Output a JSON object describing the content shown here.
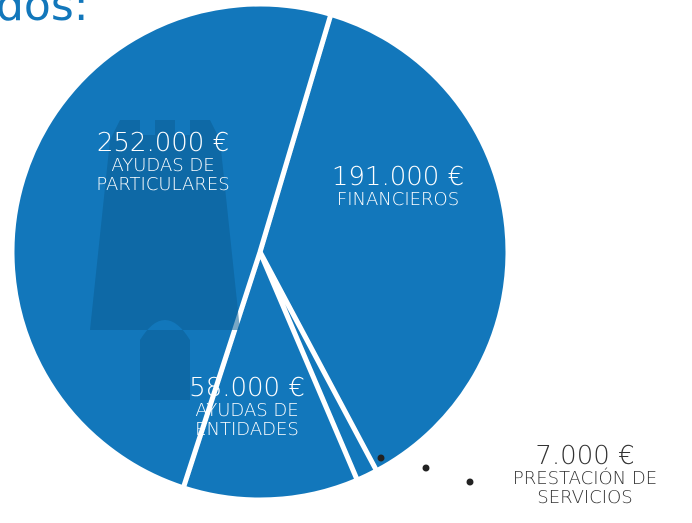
{
  "chart_data": {
    "type": "pie",
    "title": "dos:",
    "categories": [
      "FINANCIEROS",
      "PRESTACIÓN DE SERVICIOS",
      "AYUDAS DE ENTIDADES",
      "AYUDAS DE PARTICULARES"
    ],
    "values": [
      191000,
      7000,
      58000,
      252000
    ],
    "value_labels": [
      "191.000 €",
      "7.000 €",
      "58.000 €",
      "252.000 €"
    ],
    "color": "#1277bb"
  }
}
